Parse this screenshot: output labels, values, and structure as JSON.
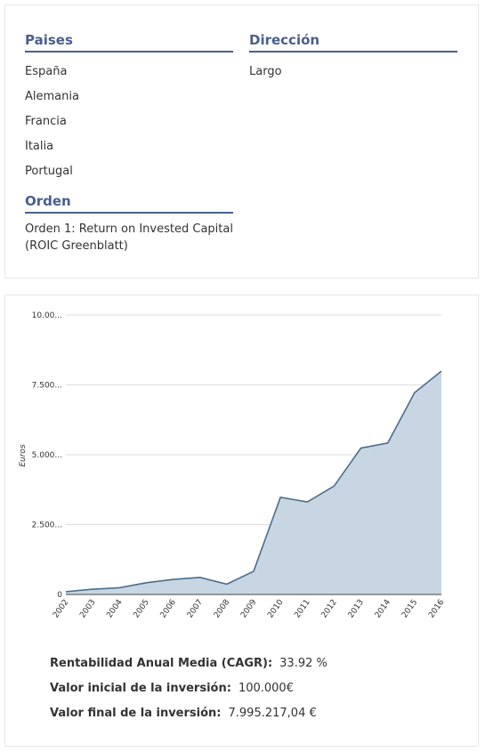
{
  "filters": {
    "paises_title": "Paises",
    "paises": [
      "España",
      "Alemania",
      "Francia",
      "Italia",
      "Portugal"
    ],
    "direccion_title": "Dirección",
    "direccion_value": "Largo",
    "orden_title": "Orden",
    "orden_value": "Orden 1: Return on Invested Capital (ROIC Greenblatt)"
  },
  "chart_data": {
    "type": "area",
    "x": [
      "2002",
      "2003",
      "2004",
      "2005",
      "2006",
      "2007",
      "2008",
      "2009",
      "2010",
      "2011",
      "2012",
      "2013",
      "2014",
      "2015",
      "2016"
    ],
    "series": [
      {
        "values": [
          100,
          190,
          240,
          420,
          540,
          610,
          370,
          830,
          3480,
          3310,
          3880,
          5240,
          5420,
          7220,
          7995
        ]
      }
    ],
    "ylabel": "Euros",
    "ylim": [
      0,
      10000
    ],
    "yticks": [
      {
        "value": 0,
        "label": "0"
      },
      {
        "value": 2500,
        "label": "2.500..."
      },
      {
        "value": 5000,
        "label": "5.000..."
      },
      {
        "value": 7500,
        "label": "7.500..."
      },
      {
        "value": 10000,
        "label": "10.00..."
      }
    ],
    "grid": true,
    "colors": {
      "line": "#4a6d8c",
      "fill": "#c8d6e3",
      "grid": "#dddddd",
      "axis": "#444444"
    }
  },
  "stats": {
    "cagr_label": "Rentabilidad Anual Media (CAGR):",
    "cagr_value": "33.92 %",
    "inicial_label": "Valor inicial de la inversión:",
    "inicial_value": "100.000€",
    "final_label": "Valor final de la inversión:",
    "final_value": "7.995.217,04 €"
  }
}
